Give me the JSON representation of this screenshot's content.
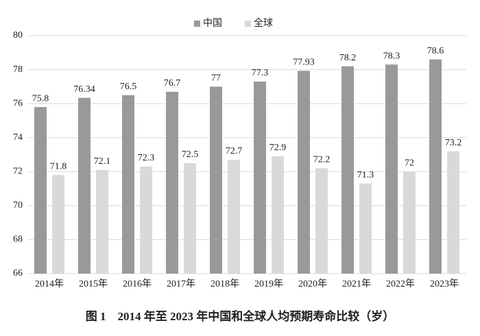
{
  "chart_data": {
    "type": "bar",
    "title": "图 1　2014 年至 2023 年中国和全球人均预期寿命比较（岁）",
    "categories": [
      "2014年",
      "2015年",
      "2016年",
      "2017年",
      "2018年",
      "2019年",
      "2020年",
      "2021年",
      "2022年",
      "2023年"
    ],
    "series": [
      {
        "name": "中国",
        "color": "#999999",
        "values": [
          75.8,
          76.34,
          76.5,
          76.7,
          77,
          77.3,
          77.93,
          78.2,
          78.3,
          78.6
        ]
      },
      {
        "name": "全球",
        "color": "#d9d9d9",
        "values": [
          71.8,
          72.1,
          72.3,
          72.5,
          72.7,
          72.9,
          72.2,
          71.3,
          72,
          73.2
        ]
      }
    ],
    "ylim": [
      66,
      80
    ],
    "yticks": [
      66,
      68,
      70,
      72,
      74,
      76,
      78,
      80
    ],
    "grid": true,
    "legend": "top"
  }
}
